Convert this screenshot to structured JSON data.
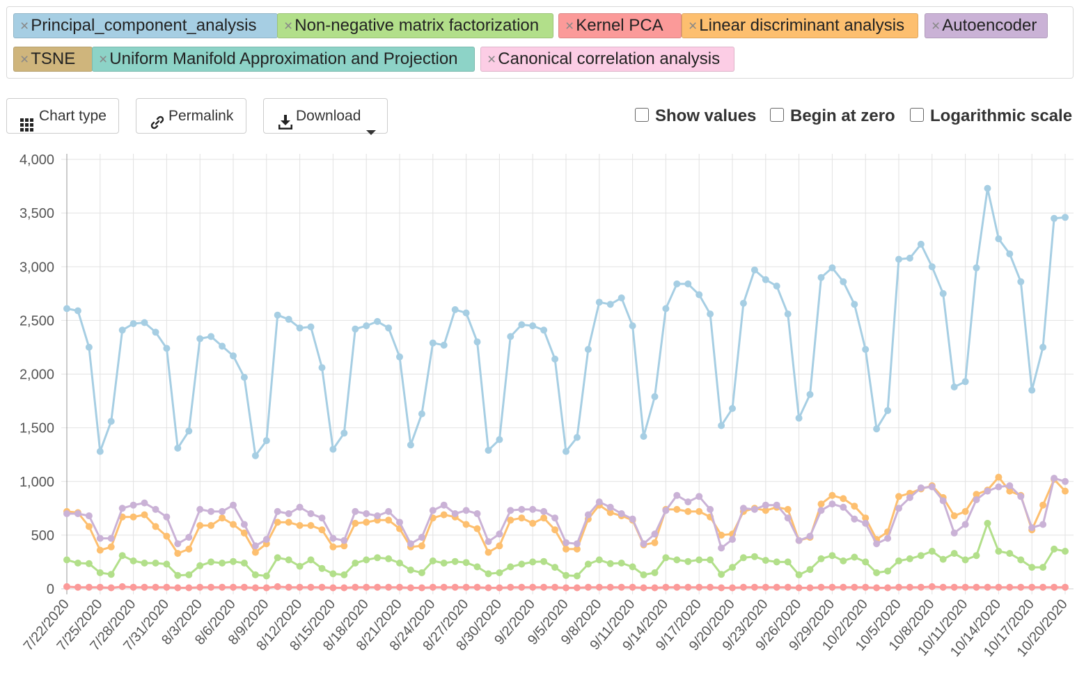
{
  "tags": [
    {
      "label": "Principal_component_analysis",
      "color": "#a6cee3"
    },
    {
      "label": "Non-negative matrix factorization",
      "color": "#b2df8a"
    },
    {
      "label": "Kernel PCA",
      "color": "#fb9a99"
    },
    {
      "label": "Linear discriminant analysis",
      "color": "#fdbf6f"
    },
    {
      "label": "Autoencoder",
      "color": "#cab2d6"
    },
    {
      "label": "TSNE",
      "color": "#cfb57c"
    },
    {
      "label": "Uniform Manifold Approximation and Projection",
      "color": "#8dd3c7"
    },
    {
      "label": "Canonical correlation analysis",
      "color": "#fccde5"
    }
  ],
  "remove_glyph": "×",
  "toolbar": {
    "chart_type": "Chart type",
    "permalink": "Permalink",
    "download": "Download",
    "show_values": "Show values",
    "begin_at_zero": "Begin at zero",
    "log_scale": "Logarithmic scale"
  },
  "chart_data": {
    "type": "line",
    "start_date": "7/22/2020",
    "x_tick_labels": [
      "7/22/2020",
      "7/25/2020",
      "7/28/2020",
      "7/31/2020",
      "8/3/2020",
      "8/6/2020",
      "8/9/2020",
      "8/12/2020",
      "8/15/2020",
      "8/18/2020",
      "8/21/2020",
      "8/24/2020",
      "8/27/2020",
      "8/30/2020",
      "9/2/2020",
      "9/5/2020",
      "9/8/2020",
      "9/11/2020",
      "9/14/2020",
      "9/17/2020",
      "9/20/2020",
      "9/23/2020",
      "9/26/2020",
      "9/29/2020",
      "10/2/2020",
      "10/5/2020",
      "10/8/2020",
      "10/11/2020",
      "10/14/2020",
      "10/17/2020",
      "10/20/2020"
    ],
    "y_ticks": [
      0,
      500,
      1000,
      1500,
      2000,
      2500,
      3000,
      3500,
      4000
    ],
    "y_tick_labels": [
      "0",
      "500",
      "1,000",
      "1,500",
      "2,000",
      "2,500",
      "3,000",
      "3,500",
      "4,000"
    ],
    "ylim": [
      0,
      4000
    ],
    "grid": true,
    "series": [
      {
        "name": "Non-negative matrix factorization",
        "color": "#b2df8a",
        "values": [
          270,
          240,
          235,
          150,
          135,
          310,
          260,
          240,
          240,
          230,
          125,
          130,
          215,
          250,
          240,
          255,
          240,
          130,
          120,
          290,
          270,
          210,
          270,
          190,
          140,
          130,
          240,
          270,
          290,
          280,
          240,
          175,
          150,
          260,
          240,
          255,
          245,
          205,
          140,
          150,
          205,
          230,
          250,
          255,
          200,
          125,
          120,
          230,
          270,
          235,
          240,
          205,
          130,
          150,
          290,
          270,
          255,
          270,
          270,
          135,
          200,
          290,
          300,
          265,
          250,
          250,
          130,
          180,
          280,
          310,
          260,
          295,
          250,
          150,
          165,
          260,
          280,
          310,
          350,
          275,
          330,
          270,
          310,
          610,
          350,
          330,
          270,
          200,
          200,
          370,
          350
        ]
      },
      {
        "name": "Kernel PCA",
        "color": "#fb9a99",
        "values": [
          20,
          15,
          15,
          15,
          10,
          20,
          15,
          15,
          15,
          15,
          10,
          10,
          15,
          15,
          15,
          15,
          15,
          10,
          10,
          20,
          15,
          15,
          15,
          15,
          10,
          10,
          15,
          15,
          15,
          15,
          15,
          10,
          10,
          15,
          15,
          15,
          15,
          15,
          10,
          10,
          15,
          15,
          15,
          15,
          15,
          10,
          10,
          15,
          15,
          15,
          15,
          15,
          10,
          10,
          15,
          15,
          15,
          15,
          15,
          10,
          10,
          15,
          15,
          15,
          15,
          15,
          10,
          10,
          15,
          15,
          15,
          15,
          15,
          10,
          10,
          15,
          15,
          15,
          20,
          15,
          15,
          15,
          15,
          15,
          15,
          15,
          15,
          15,
          15,
          15,
          15
        ]
      },
      {
        "name": "Linear discriminant analysis",
        "color": "#fdbf6f",
        "values": [
          720,
          710,
          580,
          360,
          390,
          670,
          670,
          690,
          580,
          490,
          330,
          370,
          590,
          590,
          660,
          600,
          520,
          340,
          420,
          620,
          620,
          590,
          590,
          550,
          390,
          400,
          610,
          620,
          640,
          640,
          560,
          390,
          400,
          660,
          690,
          670,
          600,
          560,
          340,
          400,
          640,
          660,
          610,
          660,
          550,
          370,
          370,
          650,
          780,
          710,
          680,
          640,
          410,
          430,
          740,
          740,
          720,
          720,
          670,
          500,
          510,
          720,
          750,
          730,
          760,
          740,
          450,
          480,
          790,
          870,
          840,
          770,
          660,
          460,
          530,
          860,
          890,
          930,
          960,
          850,
          680,
          720,
          880,
          920,
          1040,
          910,
          870,
          550,
          780,
          1020,
          910
        ]
      },
      {
        "name": "Autoencoder",
        "color": "#cab2d6",
        "values": [
          700,
          700,
          680,
          470,
          470,
          750,
          780,
          800,
          740,
          670,
          420,
          480,
          740,
          720,
          720,
          780,
          600,
          400,
          460,
          720,
          700,
          760,
          700,
          660,
          470,
          450,
          720,
          700,
          680,
          720,
          620,
          420,
          480,
          730,
          780,
          700,
          730,
          700,
          440,
          510,
          730,
          740,
          740,
          720,
          660,
          430,
          420,
          690,
          810,
          760,
          700,
          650,
          420,
          510,
          730,
          870,
          810,
          860,
          740,
          380,
          460,
          750,
          740,
          780,
          780,
          660,
          450,
          490,
          730,
          790,
          760,
          650,
          610,
          420,
          470,
          750,
          850,
          940,
          950,
          820,
          520,
          600,
          830,
          910,
          950,
          960,
          860,
          570,
          600,
          1030,
          1000
        ]
      },
      {
        "name": "Principal_component_analysis",
        "color": "#a6cee3",
        "values": [
          2610,
          2590,
          2250,
          1280,
          1560,
          2410,
          2470,
          2480,
          2390,
          2240,
          1310,
          1470,
          2330,
          2350,
          2260,
          2170,
          1970,
          1240,
          1380,
          2550,
          2510,
          2430,
          2440,
          2060,
          1300,
          1450,
          2420,
          2450,
          2490,
          2430,
          2160,
          1340,
          1630,
          2290,
          2270,
          2600,
          2570,
          2300,
          1290,
          1390,
          2350,
          2460,
          2450,
          2410,
          2140,
          1280,
          1410,
          2230,
          2670,
          2650,
          2710,
          2450,
          1420,
          1790,
          2610,
          2840,
          2840,
          2740,
          2560,
          1520,
          1680,
          2660,
          2970,
          2880,
          2820,
          2560,
          1590,
          1810,
          2900,
          2990,
          2860,
          2650,
          2230,
          1490,
          1660,
          3070,
          3080,
          3210,
          3000,
          2750,
          1880,
          1930,
          2990,
          3730,
          3260,
          3120,
          2860,
          1850,
          2250,
          3450,
          3460
        ]
      }
    ]
  }
}
